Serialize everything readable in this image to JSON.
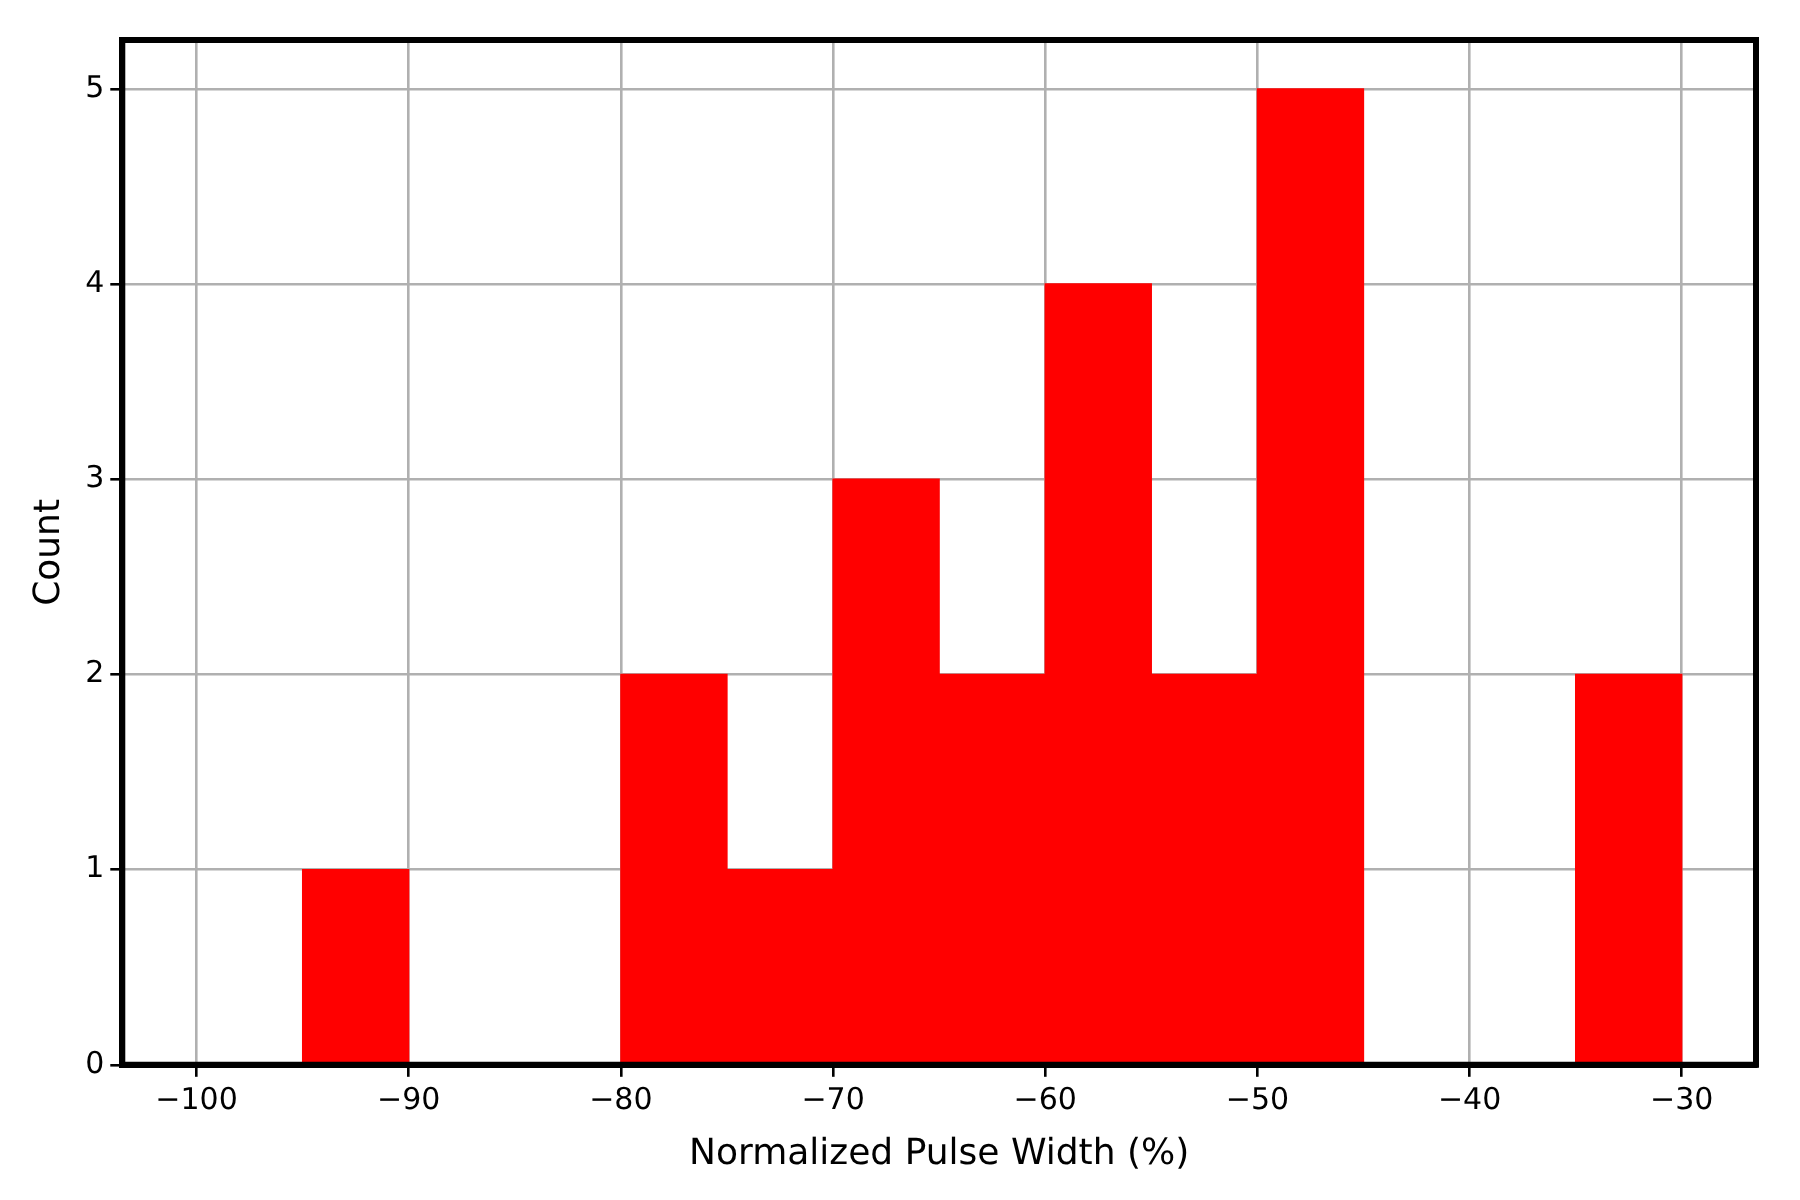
{
  "chart_data": {
    "type": "histogram",
    "xlabel": "Normalized Pulse Width (%)",
    "ylabel": "Count",
    "bins": [
      -95,
      -90,
      -85,
      -80,
      -75,
      -70,
      -65,
      -60,
      -55,
      -50,
      -45,
      -40,
      -35,
      -30
    ],
    "values": [
      1,
      0,
      0,
      2,
      1,
      3,
      2,
      4,
      2,
      5,
      0,
      0,
      2
    ],
    "color": "#ff0000",
    "xlim": [
      -103.5,
      -26.5
    ],
    "xticks": [
      {
        "value": -100,
        "label": "−100"
      },
      {
        "value": -90,
        "label": "−90"
      },
      {
        "value": -80,
        "label": "−80"
      },
      {
        "value": -70,
        "label": "−70"
      },
      {
        "value": -60,
        "label": "−60"
      },
      {
        "value": -50,
        "label": "−50"
      },
      {
        "value": -40,
        "label": "−40"
      },
      {
        "value": -30,
        "label": "−30"
      }
    ],
    "ylim": [
      0,
      5.25
    ],
    "yticks": [
      0,
      1,
      2,
      3,
      4,
      5
    ],
    "grid": true
  }
}
